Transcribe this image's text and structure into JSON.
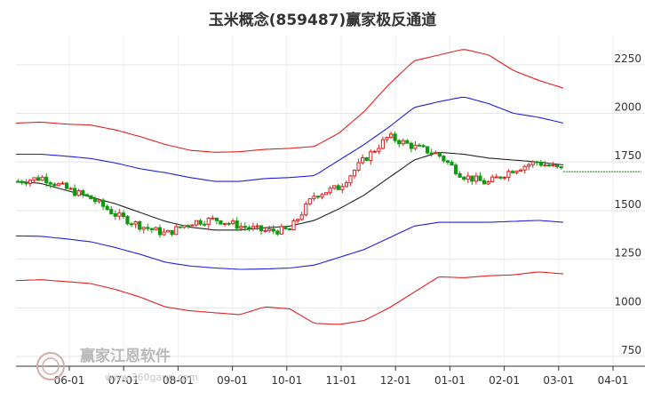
{
  "chart_data": {
    "type": "candlestick",
    "title": "玉米概念(859487)赢家极反通道",
    "xlabel": "",
    "ylabel": "",
    "ylim": [
      700,
      2400
    ],
    "yticks": [
      750,
      1000,
      1250,
      1500,
      1750,
      2000,
      2250
    ],
    "xticks": [
      "06-01",
      "07-01",
      "08-01",
      "09-01",
      "10-01",
      "11-01",
      "12-01",
      "01-01",
      "02-01",
      "03-01",
      "04-01"
    ],
    "grid": true,
    "colors": {
      "up": "#e02020",
      "down": "#109910",
      "outer_band": "#e02020",
      "inner_band": "#2020e0",
      "mid_line": "#222222",
      "last_line": "#108810"
    },
    "series": [
      {
        "role": "outer-upper",
        "values": [
          1950,
          1955,
          1945,
          1940,
          1915,
          1880,
          1840,
          1810,
          1800,
          1803,
          1815,
          1820,
          1830,
          1900,
          2010,
          2150,
          2270,
          2300,
          2330,
          2300,
          2220,
          2170,
          2130
        ]
      },
      {
        "role": "inner-upper",
        "values": [
          1790,
          1790,
          1780,
          1768,
          1745,
          1715,
          1695,
          1670,
          1650,
          1650,
          1665,
          1670,
          1680,
          1760,
          1840,
          1930,
          2030,
          2060,
          2085,
          2050,
          2000,
          1980,
          1950
        ]
      },
      {
        "role": "middle",
        "values": [
          1650,
          1640,
          1605,
          1570,
          1535,
          1490,
          1445,
          1415,
          1400,
          1400,
          1412,
          1420,
          1450,
          1510,
          1580,
          1670,
          1760,
          1800,
          1790,
          1770,
          1760,
          1750,
          1735
        ]
      },
      {
        "role": "inner-lower",
        "values": [
          1370,
          1368,
          1355,
          1340,
          1310,
          1275,
          1235,
          1215,
          1205,
          1198,
          1200,
          1205,
          1220,
          1260,
          1300,
          1360,
          1420,
          1440,
          1440,
          1440,
          1445,
          1450,
          1440
        ]
      },
      {
        "role": "outer-lower",
        "values": [
          1140,
          1145,
          1135,
          1125,
          1095,
          1055,
          1005,
          985,
          975,
          965,
          1005,
          995,
          920,
          915,
          935,
          1000,
          1080,
          1160,
          1155,
          1165,
          1170,
          1185,
          1175
        ]
      },
      {
        "role": "close",
        "values": [
          1650,
          1670,
          1610,
          1560,
          1475,
          1420,
          1380,
          1440,
          1455,
          1420,
          1395,
          1400,
          1580,
          1620,
          1760,
          1880,
          1830,
          1790,
          1680,
          1640,
          1710,
          1750,
          1710
        ]
      }
    ],
    "last_value": 1700
  },
  "watermark": {
    "text": "赢家江恩软件",
    "url": "www.360gann.com"
  }
}
